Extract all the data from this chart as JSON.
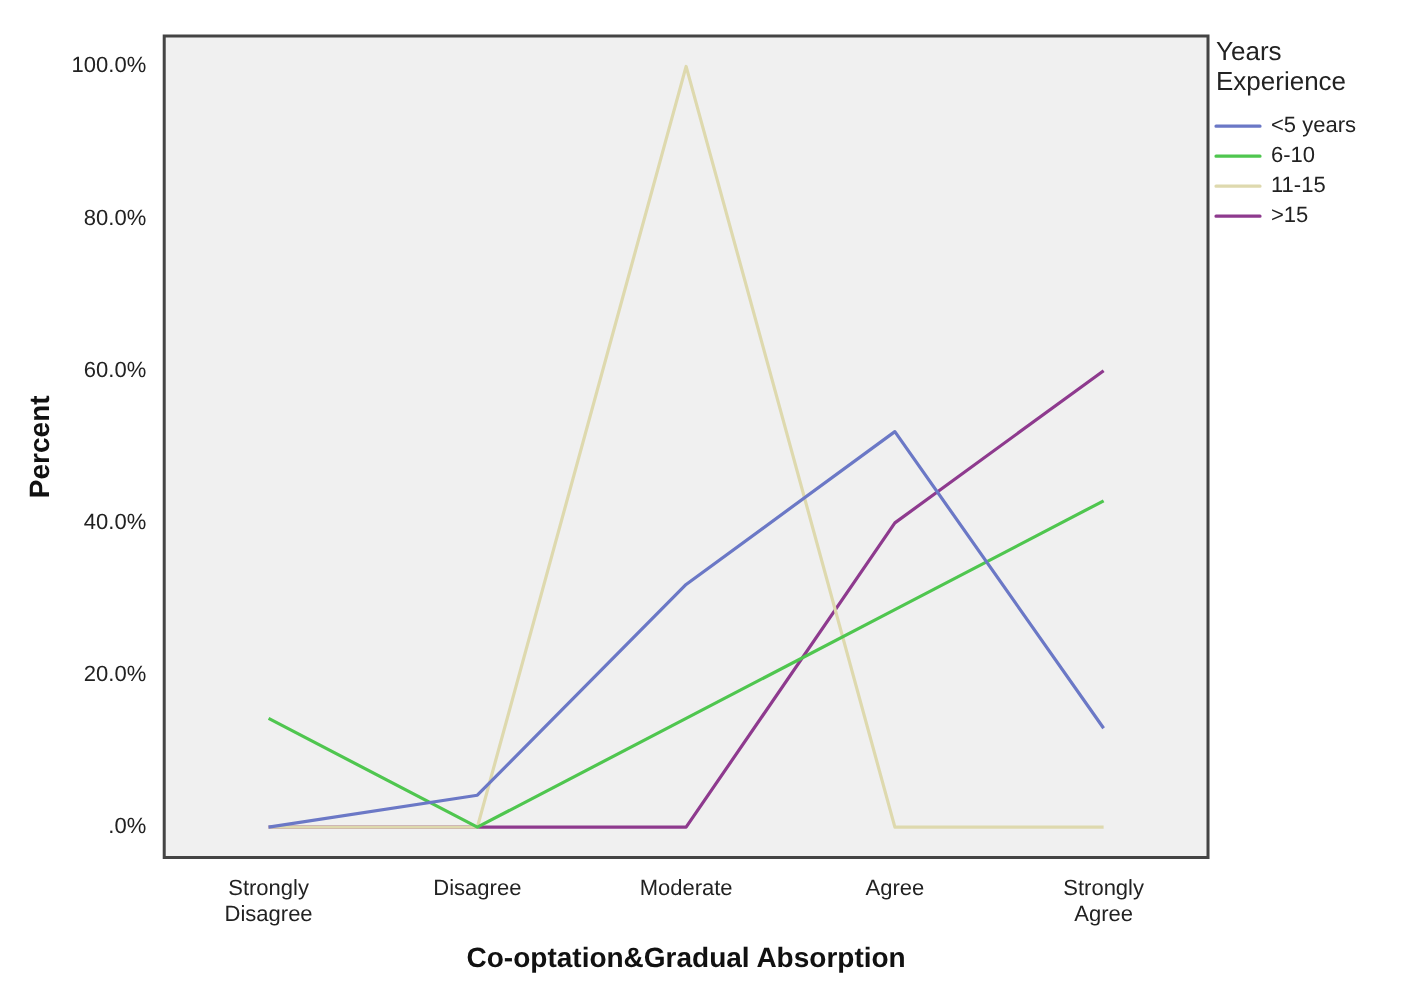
{
  "chart_data": {
    "type": "line",
    "xlabel": "Co-optation&Gradual Absorption",
    "ylabel": "Percent",
    "legend_title": "Years Experience",
    "categories": [
      "Strongly Disagree",
      "Disagree",
      "Moderate",
      "Agree",
      "Strongly Agree"
    ],
    "series": [
      {
        "name": "<5 years",
        "color": "#6b78c6",
        "values": [
          0,
          4.2,
          31.9,
          52,
          13
        ]
      },
      {
        "name": "6-10",
        "color": "#4fc64f",
        "values": [
          14.3,
          0,
          14.3,
          28.6,
          42.9
        ]
      },
      {
        "name": "11-15",
        "color": "#ded9ae",
        "values": [
          0,
          0,
          100,
          0,
          0
        ]
      },
      {
        "name": ">15",
        "color": "#8e3a8e",
        "values": [
          0,
          0,
          0,
          40,
          60
        ]
      }
    ],
    "ylim": [
      -4,
      104
    ],
    "yticks": [
      {
        "value": 0,
        "label": ".0%"
      },
      {
        "value": 20,
        "label": "20.0%"
      },
      {
        "value": 40,
        "label": "40.0%"
      },
      {
        "value": 60,
        "label": "60.0%"
      },
      {
        "value": 80,
        "label": "80.0%"
      },
      {
        "value": 100,
        "label": "100.0%"
      }
    ],
    "grid": false,
    "legend": "top right",
    "marker": "none",
    "line_style": "solid"
  }
}
